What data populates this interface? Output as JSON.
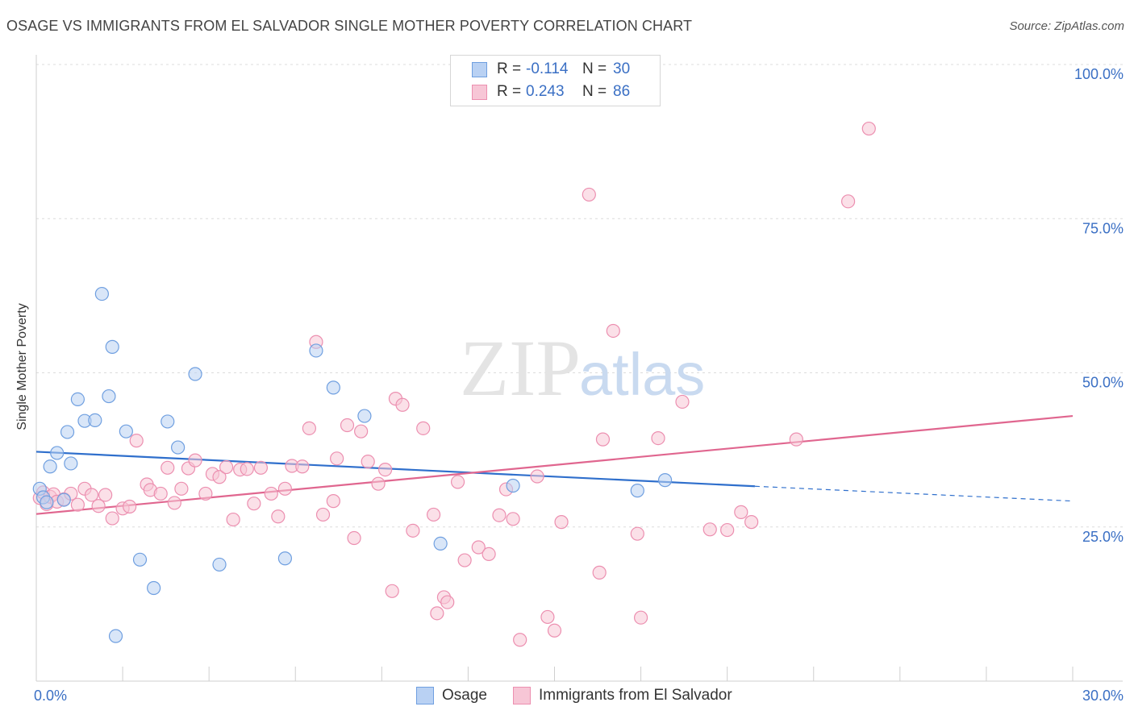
{
  "header": {
    "title": "OSAGE VS IMMIGRANTS FROM EL SALVADOR SINGLE MOTHER POVERTY CORRELATION CHART",
    "source": "Source: ZipAtlas.com"
  },
  "watermark": {
    "part1": "ZIP",
    "part2": "atlas"
  },
  "colors": {
    "osage_fill": "#b9d1f3",
    "osage_stroke": "#6f9fe0",
    "osage_line": "#2f6fcc",
    "salvador_fill": "#f7c6d6",
    "salvador_stroke": "#ec8fb0",
    "salvador_line": "#e0668f",
    "tick_label": "#3a6fc4",
    "grid": "#dcdcdc"
  },
  "legend": {
    "r_label": "R =",
    "n_label": "N =",
    "rows": [
      {
        "r": "-0.114",
        "n": "30"
      },
      {
        "r": "0.243",
        "n": "86"
      }
    ]
  },
  "chart_data": {
    "type": "scatter",
    "title": "OSAGE VS IMMIGRANTS FROM EL SALVADOR SINGLE MOTHER POVERTY CORRELATION CHART",
    "xlabel": "",
    "ylabel": "Single Mother Poverty",
    "xlim": [
      0,
      30
    ],
    "ylim": [
      0,
      100
    ],
    "x_tick_labels": [
      "0.0%",
      "30.0%"
    ],
    "y_ticks": [
      25,
      50,
      75,
      100
    ],
    "y_tick_labels": [
      "25.0%",
      "50.0%",
      "75.0%",
      "100.0%"
    ],
    "grid": true,
    "legend_position": "top-center",
    "series": [
      {
        "name": "Osage",
        "r": -0.114,
        "n": 30,
        "trend": {
          "x0": 0,
          "y0": 37.2,
          "x1": 20.8,
          "y1": 31.6,
          "dashed_to_x": 30,
          "dashed_to_y": 29.2
        },
        "points": [
          [
            0.1,
            31.2
          ],
          [
            0.2,
            29.8
          ],
          [
            0.4,
            34.8
          ],
          [
            0.6,
            37.0
          ],
          [
            0.8,
            29.4
          ],
          [
            0.9,
            40.4
          ],
          [
            1.0,
            35.3
          ],
          [
            1.2,
            45.7
          ],
          [
            1.4,
            42.2
          ],
          [
            1.7,
            42.3
          ],
          [
            1.9,
            62.8
          ],
          [
            2.1,
            46.2
          ],
          [
            2.2,
            54.2
          ],
          [
            2.3,
            7.3
          ],
          [
            2.6,
            40.5
          ],
          [
            3.0,
            19.7
          ],
          [
            3.4,
            15.1
          ],
          [
            3.8,
            42.1
          ],
          [
            4.1,
            37.9
          ],
          [
            4.6,
            49.8
          ],
          [
            5.3,
            18.9
          ],
          [
            7.2,
            19.9
          ],
          [
            8.1,
            53.6
          ],
          [
            8.6,
            47.6
          ],
          [
            9.5,
            43.0
          ],
          [
            11.7,
            22.3
          ],
          [
            13.8,
            31.7
          ],
          [
            17.4,
            30.9
          ],
          [
            18.2,
            32.6
          ],
          [
            0.3,
            29.0
          ]
        ]
      },
      {
        "name": "Immigrants from El Salvador",
        "r": 0.243,
        "n": 86,
        "trend": {
          "x0": 0,
          "y0": 27.1,
          "x1": 30,
          "y1": 43.0
        },
        "points": [
          [
            0.1,
            29.7
          ],
          [
            0.2,
            30.6
          ],
          [
            0.3,
            28.7
          ],
          [
            0.4,
            29.9
          ],
          [
            0.5,
            30.3
          ],
          [
            0.6,
            29.1
          ],
          [
            0.8,
            29.5
          ],
          [
            1.0,
            30.4
          ],
          [
            1.2,
            28.6
          ],
          [
            1.4,
            31.2
          ],
          [
            1.6,
            30.2
          ],
          [
            1.8,
            28.4
          ],
          [
            2.0,
            30.2
          ],
          [
            2.2,
            26.4
          ],
          [
            2.5,
            28.0
          ],
          [
            2.7,
            28.3
          ],
          [
            2.9,
            39.0
          ],
          [
            3.2,
            31.9
          ],
          [
            3.3,
            31.0
          ],
          [
            3.6,
            30.4
          ],
          [
            3.8,
            34.6
          ],
          [
            4.0,
            28.9
          ],
          [
            4.2,
            31.2
          ],
          [
            4.4,
            34.5
          ],
          [
            4.6,
            35.8
          ],
          [
            4.9,
            30.4
          ],
          [
            5.1,
            33.6
          ],
          [
            5.3,
            33.1
          ],
          [
            5.5,
            34.7
          ],
          [
            5.7,
            26.2
          ],
          [
            5.9,
            34.3
          ],
          [
            6.1,
            34.4
          ],
          [
            6.3,
            28.8
          ],
          [
            6.5,
            34.6
          ],
          [
            6.8,
            30.4
          ],
          [
            7.0,
            26.7
          ],
          [
            7.2,
            31.2
          ],
          [
            7.4,
            34.9
          ],
          [
            7.7,
            34.8
          ],
          [
            7.9,
            41.0
          ],
          [
            8.1,
            55.0
          ],
          [
            8.3,
            27.0
          ],
          [
            8.6,
            29.2
          ],
          [
            8.7,
            36.1
          ],
          [
            9.0,
            41.5
          ],
          [
            9.2,
            23.2
          ],
          [
            9.4,
            40.5
          ],
          [
            9.6,
            35.6
          ],
          [
            9.9,
            32.0
          ],
          [
            10.1,
            34.3
          ],
          [
            10.3,
            14.6
          ],
          [
            10.4,
            45.8
          ],
          [
            10.6,
            44.8
          ],
          [
            10.9,
            24.4
          ],
          [
            11.2,
            41.0
          ],
          [
            11.5,
            27.0
          ],
          [
            11.6,
            11.0
          ],
          [
            11.8,
            13.6
          ],
          [
            11.9,
            12.8
          ],
          [
            12.2,
            32.3
          ],
          [
            12.4,
            19.6
          ],
          [
            12.8,
            21.7
          ],
          [
            13.1,
            20.6
          ],
          [
            13.4,
            26.9
          ],
          [
            13.6,
            31.1
          ],
          [
            13.8,
            26.3
          ],
          [
            14.0,
            6.7
          ],
          [
            14.5,
            33.2
          ],
          [
            14.8,
            10.4
          ],
          [
            15.0,
            8.2
          ],
          [
            15.2,
            25.8
          ],
          [
            16.0,
            78.9
          ],
          [
            16.3,
            17.6
          ],
          [
            16.4,
            39.2
          ],
          [
            16.7,
            56.8
          ],
          [
            17.4,
            23.9
          ],
          [
            17.5,
            10.3
          ],
          [
            18.0,
            39.4
          ],
          [
            18.7,
            45.3
          ],
          [
            19.5,
            24.6
          ],
          [
            20.0,
            24.5
          ],
          [
            20.4,
            27.4
          ],
          [
            20.7,
            25.8
          ],
          [
            22.0,
            39.2
          ],
          [
            24.1,
            89.6
          ],
          [
            23.5,
            77.8
          ]
        ]
      }
    ]
  }
}
